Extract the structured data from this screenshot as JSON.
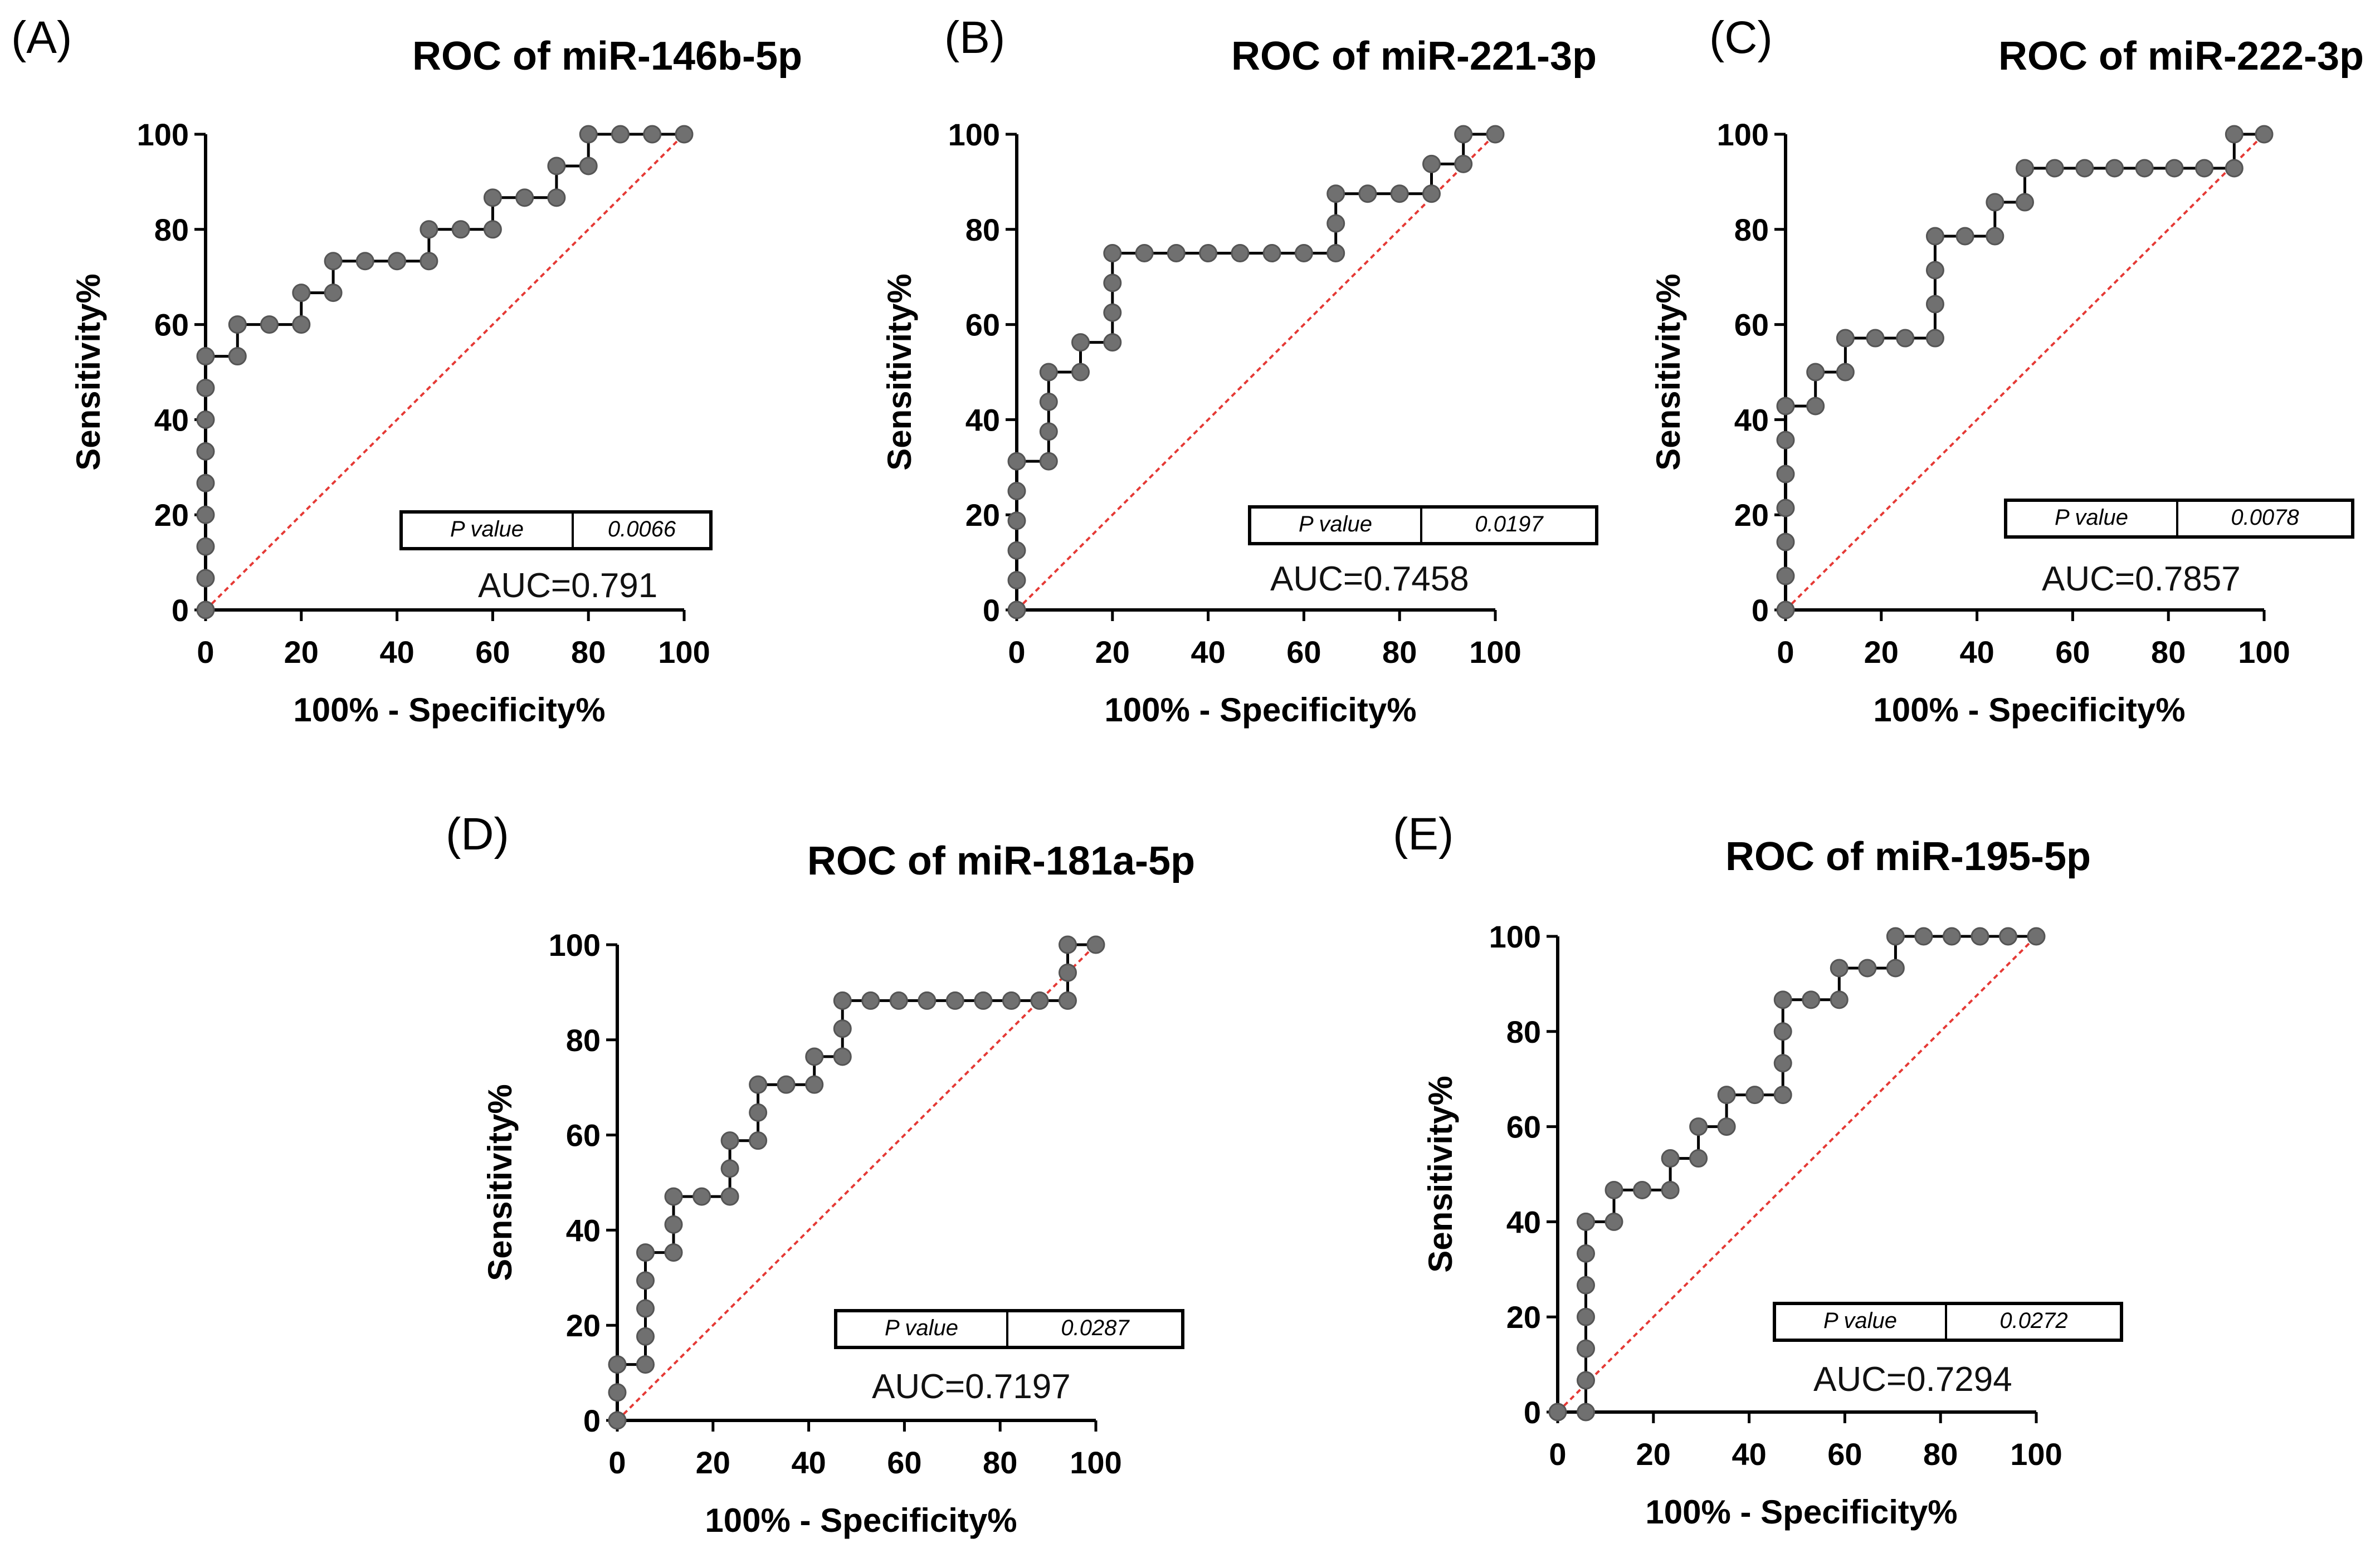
{
  "colors": {
    "curve": "#000000",
    "marker": "#707070",
    "markerStroke": "#555555",
    "reference": "#e53935",
    "axis": "#000000"
  },
  "chart_data": [
    {
      "type": "line",
      "panel": "(A)",
      "title": "ROC of miR-146b-5p",
      "xlabel": "100% - Specificity%",
      "ylabel": "Sensitivity%",
      "xlim": [
        0,
        100
      ],
      "ylim": [
        0,
        100
      ],
      "xticks": [
        "0",
        "20",
        "40",
        "60",
        "80",
        "100"
      ],
      "yticks": [
        "0",
        "20",
        "40",
        "60",
        "80",
        "100"
      ],
      "pvalue_label": "P value",
      "pvalue": "0.0066",
      "auc_text": "AUC=0.791",
      "series": [
        {
          "name": "ROC curve",
          "x": [
            0,
            0,
            0,
            0,
            0,
            0,
            0,
            0,
            0,
            6.67,
            6.67,
            13.33,
            20,
            20,
            26.67,
            26.67,
            33.33,
            40,
            46.67,
            46.67,
            53.33,
            60,
            60,
            66.67,
            73.33,
            73.33,
            80,
            80,
            86.67,
            93.33,
            100
          ],
          "y": [
            0,
            6.67,
            13.33,
            20,
            26.67,
            33.33,
            40,
            46.67,
            53.33,
            53.33,
            60,
            60,
            60,
            66.67,
            66.67,
            73.33,
            73.33,
            73.33,
            73.33,
            80,
            80,
            80,
            86.67,
            86.67,
            86.67,
            93.33,
            93.33,
            100,
            100,
            100,
            100
          ]
        },
        {
          "name": "Reference line",
          "x": [
            0,
            100
          ],
          "y": [
            0,
            100
          ]
        }
      ]
    },
    {
      "type": "line",
      "panel": "(B)",
      "title": "ROC of miR-221-3p",
      "xlabel": "100% - Specificity%",
      "ylabel": "Sensitivity%",
      "xlim": [
        0,
        100
      ],
      "ylim": [
        0,
        100
      ],
      "xticks": [
        "0",
        "20",
        "40",
        "60",
        "80",
        "100"
      ],
      "yticks": [
        "0",
        "20",
        "40",
        "60",
        "80",
        "100"
      ],
      "pvalue_label": "P value",
      "pvalue": "0.0197",
      "auc_text": "AUC=0.7458",
      "series": [
        {
          "name": "ROC curve",
          "x": [
            0,
            0,
            0,
            0,
            0,
            0,
            6.67,
            6.67,
            6.67,
            6.67,
            13.33,
            13.33,
            20,
            20,
            20,
            20,
            26.67,
            33.33,
            40,
            46.67,
            53.33,
            60,
            66.67,
            66.67,
            66.67,
            73.33,
            80,
            86.67,
            86.67,
            93.33,
            93.33,
            100
          ],
          "y": [
            0,
            6.25,
            12.5,
            18.75,
            25,
            31.25,
            31.25,
            37.5,
            43.75,
            50,
            50,
            56.25,
            56.25,
            62.5,
            68.75,
            75,
            75,
            75,
            75,
            75,
            75,
            75,
            75,
            81.25,
            87.5,
            87.5,
            87.5,
            87.5,
            93.75,
            93.75,
            100,
            100
          ]
        },
        {
          "name": "Reference line",
          "x": [
            0,
            100
          ],
          "y": [
            0,
            100
          ]
        }
      ]
    },
    {
      "type": "line",
      "panel": "(C)",
      "title": "ROC of miR-222-3p",
      "xlabel": "100% - Specificity%",
      "ylabel": "Sensitivity%",
      "xlim": [
        0,
        100
      ],
      "ylim": [
        0,
        100
      ],
      "xticks": [
        "0",
        "20",
        "40",
        "60",
        "80",
        "100"
      ],
      "yticks": [
        "0",
        "20",
        "40",
        "60",
        "80",
        "100"
      ],
      "pvalue_label": "P value",
      "pvalue": "0.0078",
      "auc_text": "AUC=0.7857",
      "series": [
        {
          "name": "ROC curve",
          "x": [
            0,
            0,
            0,
            0,
            0,
            0,
            0,
            6.25,
            6.25,
            12.5,
            12.5,
            18.75,
            25,
            31.25,
            31.25,
            31.25,
            31.25,
            37.5,
            43.75,
            43.75,
            50,
            50,
            56.25,
            62.5,
            68.75,
            75,
            81.25,
            87.5,
            93.75,
            93.75,
            100
          ],
          "y": [
            0,
            7.14,
            14.29,
            21.43,
            28.57,
            35.71,
            42.86,
            42.86,
            50,
            50,
            57.14,
            57.14,
            57.14,
            57.14,
            64.29,
            71.43,
            78.57,
            78.57,
            78.57,
            85.71,
            85.71,
            92.86,
            92.86,
            92.86,
            92.86,
            92.86,
            92.86,
            92.86,
            92.86,
            100,
            100
          ]
        },
        {
          "name": "Reference line",
          "x": [
            0,
            100
          ],
          "y": [
            0,
            100
          ]
        }
      ]
    },
    {
      "type": "line",
      "panel": "(D)",
      "title": "ROC of miR-181a-5p",
      "xlabel": "100% - Specificity%",
      "ylabel": "Sensitivity%",
      "xlim": [
        0,
        100
      ],
      "ylim": [
        0,
        100
      ],
      "xticks": [
        "0",
        "20",
        "40",
        "60",
        "80",
        "100"
      ],
      "yticks": [
        "0",
        "20",
        "40",
        "60",
        "80",
        "100"
      ],
      "pvalue_label": "P value",
      "pvalue": "0.0287",
      "auc_text": "AUC=0.7197",
      "series": [
        {
          "name": "ROC curve",
          "x": [
            0,
            0,
            0,
            5.88,
            5.88,
            5.88,
            5.88,
            5.88,
            11.76,
            11.76,
            11.76,
            17.65,
            23.53,
            23.53,
            23.53,
            29.41,
            29.41,
            29.41,
            35.29,
            41.18,
            41.18,
            47.06,
            47.06,
            47.06,
            52.94,
            58.82,
            64.71,
            70.59,
            76.47,
            82.35,
            88.24,
            94.12,
            94.12,
            94.12,
            100
          ],
          "y": [
            0,
            5.88,
            11.76,
            11.76,
            17.65,
            23.53,
            29.41,
            35.29,
            35.29,
            41.18,
            47.06,
            47.06,
            47.06,
            52.94,
            58.82,
            58.82,
            64.71,
            70.59,
            70.59,
            70.59,
            76.47,
            76.47,
            82.35,
            88.24,
            88.24,
            88.24,
            88.24,
            88.24,
            88.24,
            88.24,
            88.24,
            88.24,
            94.12,
            100,
            100
          ]
        },
        {
          "name": "Reference line",
          "x": [
            0,
            100
          ],
          "y": [
            0,
            100
          ]
        }
      ]
    },
    {
      "type": "line",
      "panel": "(E)",
      "title": "ROC of miR-195-5p",
      "xlabel": "100% - Specificity%",
      "ylabel": "Sensitivity%",
      "xlim": [
        0,
        100
      ],
      "ylim": [
        0,
        100
      ],
      "xticks": [
        "0",
        "20",
        "40",
        "60",
        "80",
        "100"
      ],
      "yticks": [
        "0",
        "20",
        "40",
        "60",
        "80",
        "100"
      ],
      "pvalue_label": "P value",
      "pvalue": "0.0272",
      "auc_text": "AUC=0.7294",
      "series": [
        {
          "name": "ROC curve",
          "x": [
            0,
            5.88,
            5.88,
            5.88,
            5.88,
            5.88,
            5.88,
            5.88,
            11.76,
            11.76,
            17.65,
            23.53,
            23.53,
            29.41,
            29.41,
            35.29,
            35.29,
            41.18,
            47.06,
            47.06,
            47.06,
            47.06,
            52.94,
            58.82,
            58.82,
            64.71,
            70.59,
            70.59,
            76.47,
            82.35,
            88.24,
            94.12,
            100
          ],
          "y": [
            0,
            0,
            6.67,
            13.33,
            20,
            26.67,
            33.33,
            40,
            40,
            46.67,
            46.67,
            46.67,
            53.33,
            53.33,
            60,
            60,
            66.67,
            66.67,
            66.67,
            73.33,
            80,
            86.67,
            86.67,
            86.67,
            93.33,
            93.33,
            93.33,
            100,
            100,
            100,
            100,
            100,
            100
          ]
        },
        {
          "name": "Reference line",
          "x": [
            0,
            100
          ],
          "y": [
            0,
            100
          ]
        }
      ]
    }
  ]
}
